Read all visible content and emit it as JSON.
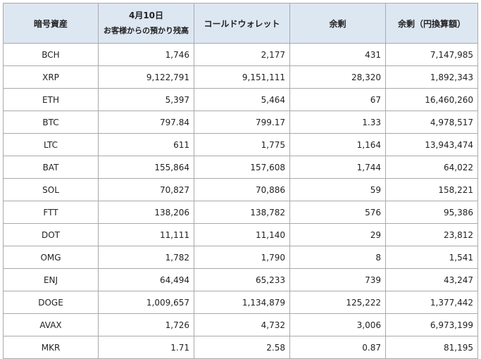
{
  "header": {
    "col0": "暗号資産",
    "col1_line1": "4月10日",
    "col1_line2": "お客様からの預かり残高",
    "col2": "コールドウォレット",
    "col3": "余剰",
    "col4": "余剰（円換算額）"
  },
  "rows": [
    {
      "asset": "BCH",
      "balance": "1,746",
      "cold": "2,177",
      "surplus": "431",
      "jpy": "7,147,985"
    },
    {
      "asset": "XRP",
      "balance": "9,122,791",
      "cold": "9,151,111",
      "surplus": "28,320",
      "jpy": "1,892,343"
    },
    {
      "asset": "ETH",
      "balance": "5,397",
      "cold": "5,464",
      "surplus": "67",
      "jpy": "16,460,260"
    },
    {
      "asset": "BTC",
      "balance": "797.84",
      "cold": "799.17",
      "surplus": "1.33",
      "jpy": "4,978,517"
    },
    {
      "asset": "LTC",
      "balance": "611",
      "cold": "1,775",
      "surplus": "1,164",
      "jpy": "13,943,474"
    },
    {
      "asset": "BAT",
      "balance": "155,864",
      "cold": "157,608",
      "surplus": "1,744",
      "jpy": "64,022"
    },
    {
      "asset": "SOL",
      "balance": "70,827",
      "cold": "70,886",
      "surplus": "59",
      "jpy": "158,221"
    },
    {
      "asset": "FTT",
      "balance": "138,206",
      "cold": "138,782",
      "surplus": "576",
      "jpy": "95,386"
    },
    {
      "asset": "DOT",
      "balance": "11,111",
      "cold": "11,140",
      "surplus": "29",
      "jpy": "23,812"
    },
    {
      "asset": "OMG",
      "balance": "1,782",
      "cold": "1,790",
      "surplus": "8",
      "jpy": "1,541"
    },
    {
      "asset": "ENJ",
      "balance": "64,494",
      "cold": "65,233",
      "surplus": "739",
      "jpy": "43,247"
    },
    {
      "asset": "DOGE",
      "balance": "1,009,657",
      "cold": "1,134,879",
      "surplus": "125,222",
      "jpy": "1,377,442"
    },
    {
      "asset": "AVAX",
      "balance": "1,726",
      "cold": "4,732",
      "surplus": "3,006",
      "jpy": "6,973,199"
    },
    {
      "asset": "MKR",
      "balance": "1.71",
      "cold": "2.58",
      "surplus": "0.87",
      "jpy": "81,195"
    }
  ]
}
